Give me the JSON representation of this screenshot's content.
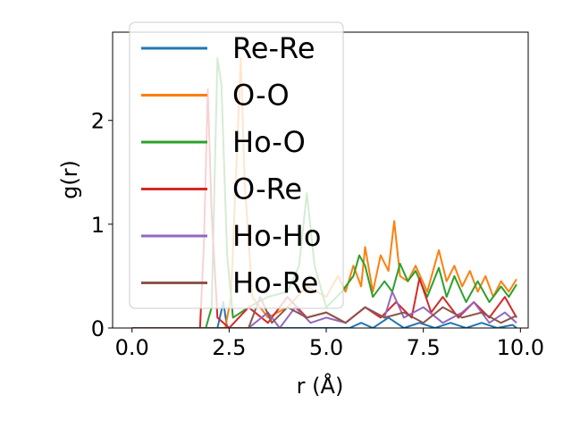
{
  "chart_data": {
    "type": "line",
    "xlabel": "r (Å)",
    "ylabel": "g(r)",
    "xlim": [
      -0.5,
      10.2
    ],
    "ylim": [
      0,
      2.85
    ],
    "xticks": [
      0.0,
      2.5,
      5.0,
      7.5,
      10.0
    ],
    "xtick_labels": [
      "0.0",
      "2.5",
      "5.0",
      "7.5",
      "10.0"
    ],
    "yticks": [
      0,
      1,
      2
    ],
    "ytick_labels": [
      "0",
      "1",
      "2"
    ],
    "legend_position": "upper-left",
    "series": [
      {
        "name": "Re-Re",
        "color": "#1f77b4",
        "x": [
          0,
          1,
          2,
          2.2,
          2.35,
          2.45,
          2.55,
          3,
          4,
          5,
          5.6,
          5.9,
          6.2,
          6.6,
          7,
          7.4,
          7.8,
          8.2,
          8.6,
          9,
          9.4,
          9.8,
          9.9
        ],
        "y": [
          0,
          0,
          0,
          0,
          0.25,
          0,
          0,
          0,
          0,
          0,
          0,
          0.05,
          0,
          0.1,
          0,
          0.05,
          0,
          0.05,
          0,
          0.05,
          0,
          0.03,
          0
        ]
      },
      {
        "name": "O-O",
        "color": "#ff7f0e",
        "x": [
          0,
          1,
          2,
          2.4,
          2.55,
          2.7,
          2.8,
          2.9,
          3.1,
          3.5,
          4,
          4.5,
          5,
          5.3,
          5.5,
          5.7,
          5.9,
          6.0,
          6.2,
          6.4,
          6.6,
          6.75,
          6.9,
          7.1,
          7.3,
          7.6,
          7.9,
          8.1,
          8.3,
          8.5,
          8.7,
          8.9,
          9.1,
          9.3,
          9.5,
          9.7,
          9.9
        ],
        "y": [
          0,
          0,
          0,
          0,
          0.3,
          1.7,
          2.6,
          1.4,
          0.3,
          0.1,
          0.2,
          0.4,
          0.3,
          0.5,
          0.35,
          0.6,
          0.4,
          0.78,
          0.35,
          0.7,
          0.55,
          1.03,
          0.5,
          0.45,
          0.6,
          0.35,
          0.75,
          0.45,
          0.6,
          0.4,
          0.55,
          0.35,
          0.5,
          0.3,
          0.45,
          0.35,
          0.47
        ]
      },
      {
        "name": "Ho-O",
        "color": "#2ca02c",
        "x": [
          0,
          1,
          1.9,
          2.05,
          2.2,
          2.3,
          2.45,
          2.6,
          3,
          3.5,
          4,
          4.3,
          4.5,
          4.7,
          5,
          5.4,
          5.7,
          5.85,
          6,
          6.2,
          6.5,
          6.7,
          6.9,
          7.1,
          7.3,
          7.6,
          7.9,
          8.1,
          8.3,
          8.6,
          8.9,
          9.2,
          9.5,
          9.7,
          9.9
        ],
        "y": [
          0,
          0,
          0,
          0.2,
          2.6,
          2.35,
          0.7,
          0.1,
          0.2,
          0.3,
          0.35,
          0.6,
          1.3,
          0.6,
          0.2,
          0.35,
          0.5,
          0.7,
          0.6,
          0.3,
          0.45,
          0.35,
          0.62,
          0.45,
          0.55,
          0.3,
          0.58,
          0.3,
          0.5,
          0.25,
          0.45,
          0.25,
          0.4,
          0.3,
          0.42
        ]
      },
      {
        "name": "O-Re",
        "color": "#d62728",
        "x": [
          0,
          1,
          1.75,
          1.85,
          1.95,
          2.05,
          2.2,
          2.5,
          3,
          3.5,
          4,
          4.5,
          5,
          5.5,
          6,
          6.4,
          6.8,
          7.2,
          7.4,
          7.7,
          8,
          8.4,
          8.8,
          9.2,
          9.6,
          9.9
        ],
        "y": [
          0,
          0,
          0,
          0.8,
          2.3,
          1.1,
          0.1,
          0,
          0.2,
          0.05,
          0.3,
          0.1,
          0.15,
          0.05,
          0.2,
          0.1,
          0.25,
          0.1,
          0.48,
          0.15,
          0.3,
          0.1,
          0.25,
          0.1,
          0.3,
          0.1
        ]
      },
      {
        "name": "Ho-Ho",
        "color": "#9467bd",
        "x": [
          0,
          1,
          2,
          3,
          3.5,
          3.8,
          4.2,
          4.6,
          5,
          5.5,
          6,
          6.5,
          6.7,
          7,
          7.5,
          8,
          8.5,
          8.8,
          9.2,
          9.6,
          9.9
        ],
        "y": [
          0,
          0,
          0,
          0,
          0.15,
          0,
          0.2,
          0.05,
          0.1,
          0.05,
          0.2,
          0.1,
          0.35,
          0.1,
          0.2,
          0.05,
          0.15,
          0.25,
          0.05,
          0.15,
          0.05
        ]
      },
      {
        "name": "Ho-Re",
        "color": "#8c564b",
        "x": [
          0,
          1,
          2,
          3,
          3.3,
          3.6,
          4,
          4.5,
          5,
          5.5,
          6,
          6.5,
          7,
          7.5,
          8,
          8.5,
          9,
          9.5,
          9.9
        ],
        "y": [
          0,
          0,
          0,
          0,
          0.3,
          0.05,
          0.2,
          0.1,
          0.15,
          0.05,
          0.2,
          0.1,
          0.15,
          0.05,
          0.2,
          0.1,
          0.15,
          0.05,
          0.12
        ]
      }
    ]
  }
}
